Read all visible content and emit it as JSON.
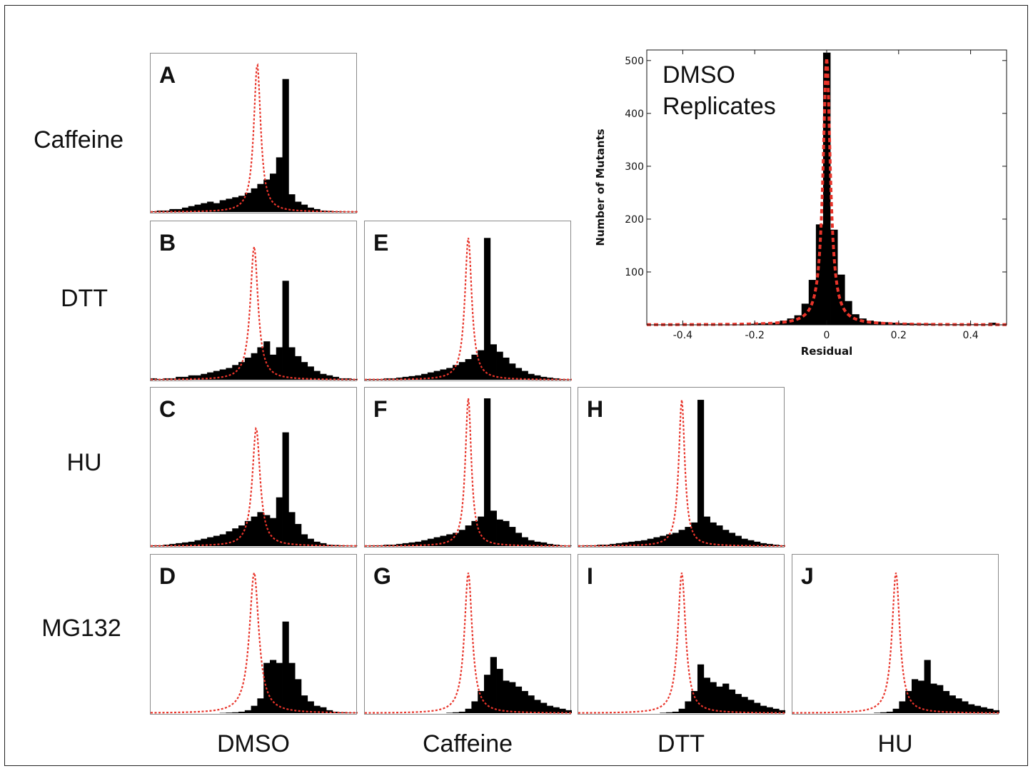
{
  "row_labels": [
    "Caffeine",
    "DTT",
    "HU",
    "MG132"
  ],
  "column_labels": [
    "DMSO",
    "Caffeine",
    "DTT",
    "HU"
  ],
  "colors": {
    "bars": "#000000",
    "fit": "#e8342a",
    "frame": "#8a8a8a"
  },
  "chart_data": [
    {
      "id": "main",
      "type": "bar",
      "title": [
        "DMSO",
        "Replicates"
      ],
      "xlabel": "Residual",
      "ylabel": "Number of Mutants",
      "xlim": [
        -0.5,
        0.5
      ],
      "ylim": [
        0,
        520
      ],
      "xticks": [
        -0.4,
        -0.2,
        0,
        0.2,
        0.4
      ],
      "xtick_labels": [
        "-0.4",
        "-0.2",
        "0",
        "0.2",
        "0.4"
      ],
      "yticks": [
        100,
        200,
        300,
        400,
        500
      ],
      "ytick_labels": [
        "100",
        "200",
        "300",
        "400",
        "500"
      ],
      "bin_width": 0.02,
      "x": [
        -0.2,
        -0.18,
        -0.16,
        -0.14,
        -0.12,
        -0.1,
        -0.08,
        -0.06,
        -0.04,
        -0.02,
        0,
        0.02,
        0.04,
        0.06,
        0.08,
        0.1,
        0.12,
        0.14,
        0.16,
        0.18,
        0.2,
        0.22,
        0.24,
        0.26,
        0.28,
        0.3,
        0.32,
        0.34,
        0.36,
        0.38,
        0.4,
        0.42,
        0.44,
        0.46
      ],
      "values": [
        2,
        3,
        3,
        4,
        8,
        12,
        18,
        40,
        85,
        190,
        515,
        180,
        95,
        45,
        20,
        12,
        8,
        6,
        5,
        4,
        3,
        3,
        2,
        2,
        2,
        1,
        1,
        1,
        1,
        1,
        1,
        1,
        1,
        4
      ],
      "fit": {
        "center": 0.0,
        "width": 0.012,
        "peak": 505
      }
    },
    {
      "id": "A",
      "type": "bar",
      "row": 0,
      "col": 0,
      "xlim": [
        -1,
        1
      ],
      "ylim": [
        0,
        1
      ],
      "values": [
        0.005,
        0.01,
        0.01,
        0.02,
        0.02,
        0.03,
        0.04,
        0.05,
        0.06,
        0.07,
        0.06,
        0.08,
        0.09,
        0.1,
        0.11,
        0.13,
        0.16,
        0.19,
        0.22,
        0.26,
        0.37,
        0.9,
        0.12,
        0.07,
        0.05,
        0.03,
        0.02,
        0.01,
        0.008,
        0.005,
        0.003,
        0.002,
        0.002
      ],
      "fit": {
        "center": 0.03,
        "width": 0.04,
        "peak": 1.0
      }
    },
    {
      "id": "B",
      "type": "bar",
      "row": 1,
      "col": 0,
      "xlim": [
        -1,
        1
      ],
      "ylim": [
        0,
        1
      ],
      "values": [
        0.01,
        0.005,
        0.01,
        0.01,
        0.02,
        0.02,
        0.03,
        0.03,
        0.04,
        0.05,
        0.06,
        0.07,
        0.08,
        0.1,
        0.12,
        0.15,
        0.18,
        0.22,
        0.26,
        0.17,
        0.22,
        0.67,
        0.22,
        0.16,
        0.12,
        0.09,
        0.06,
        0.04,
        0.03,
        0.02,
        0.01,
        0.01,
        0.005
      ],
      "fit": {
        "center": 0.0,
        "width": 0.045,
        "peak": 0.9
      }
    },
    {
      "id": "C",
      "type": "bar",
      "row": 2,
      "col": 0,
      "xlim": [
        -1,
        1
      ],
      "ylim": [
        0,
        1
      ],
      "values": [
        0.005,
        0.005,
        0.01,
        0.015,
        0.02,
        0.025,
        0.03,
        0.04,
        0.05,
        0.06,
        0.07,
        0.08,
        0.1,
        0.12,
        0.14,
        0.17,
        0.2,
        0.23,
        0.21,
        0.19,
        0.33,
        0.77,
        0.23,
        0.15,
        0.08,
        0.05,
        0.03,
        0.02,
        0.01,
        0.008,
        0.005,
        0.003,
        0.002
      ],
      "fit": {
        "center": 0.02,
        "width": 0.045,
        "peak": 0.8
      }
    },
    {
      "id": "D",
      "type": "bar",
      "row": 3,
      "col": 0,
      "xlim": [
        -1,
        1
      ],
      "ylim": [
        0,
        1
      ],
      "values": [
        0,
        0,
        0,
        0,
        0,
        0,
        0,
        0,
        0,
        0,
        0,
        0.002,
        0.004,
        0.006,
        0.01,
        0.02,
        0.05,
        0.1,
        0.34,
        0.36,
        0.34,
        0.62,
        0.34,
        0.23,
        0.12,
        0.08,
        0.05,
        0.04,
        0.02,
        0.01,
        0.006,
        0.003,
        0.002
      ],
      "fit": {
        "center": 0.0,
        "width": 0.055,
        "peak": 0.95
      }
    },
    {
      "id": "E",
      "type": "bar",
      "row": 1,
      "col": 1,
      "xlim": [
        -1,
        1
      ],
      "ylim": [
        0,
        1
      ],
      "values": [
        0.005,
        0.005,
        0.005,
        0.01,
        0.01,
        0.015,
        0.02,
        0.025,
        0.03,
        0.04,
        0.05,
        0.06,
        0.07,
        0.08,
        0.1,
        0.12,
        0.14,
        0.17,
        0.2,
        0.96,
        0.24,
        0.19,
        0.15,
        0.11,
        0.08,
        0.06,
        0.04,
        0.03,
        0.02,
        0.015,
        0.01,
        0.005,
        0.003
      ],
      "fit": {
        "center": 0.0,
        "width": 0.04,
        "peak": 0.96
      }
    },
    {
      "id": "F",
      "type": "bar",
      "row": 2,
      "col": 1,
      "xlim": [
        -1,
        1
      ],
      "ylim": [
        0,
        1
      ],
      "values": [
        0.003,
        0.005,
        0.005,
        0.01,
        0.01,
        0.015,
        0.02,
        0.025,
        0.03,
        0.04,
        0.05,
        0.06,
        0.07,
        0.08,
        0.09,
        0.11,
        0.14,
        0.17,
        0.2,
        1.0,
        0.24,
        0.18,
        0.17,
        0.13,
        0.09,
        0.06,
        0.04,
        0.03,
        0.025,
        0.015,
        0.01,
        0.005,
        0.003
      ],
      "fit": {
        "center": 0.0,
        "width": 0.035,
        "peak": 1.0
      }
    },
    {
      "id": "G",
      "type": "bar",
      "row": 3,
      "col": 1,
      "xlim": [
        -1,
        1
      ],
      "ylim": [
        0,
        1
      ],
      "values": [
        0,
        0,
        0,
        0,
        0,
        0,
        0,
        0,
        0,
        0,
        0,
        0,
        0,
        0.003,
        0.006,
        0.01,
        0.03,
        0.08,
        0.15,
        0.26,
        0.38,
        0.3,
        0.22,
        0.21,
        0.18,
        0.15,
        0.12,
        0.09,
        0.07,
        0.05,
        0.04,
        0.03,
        0.02
      ],
      "fit": {
        "center": 0.0,
        "width": 0.045,
        "peak": 0.95
      }
    },
    {
      "id": "H",
      "type": "bar",
      "row": 2,
      "col": 2,
      "xlim": [
        -1,
        1
      ],
      "ylim": [
        0,
        1
      ],
      "values": [
        0.003,
        0.005,
        0.005,
        0.01,
        0.01,
        0.015,
        0.02,
        0.025,
        0.03,
        0.035,
        0.04,
        0.05,
        0.06,
        0.07,
        0.08,
        0.09,
        0.11,
        0.13,
        0.16,
        0.99,
        0.2,
        0.16,
        0.14,
        0.11,
        0.09,
        0.07,
        0.05,
        0.04,
        0.03,
        0.02,
        0.015,
        0.01,
        0.005
      ],
      "fit": {
        "center": 0.0,
        "width": 0.035,
        "peak": 0.99
      }
    },
    {
      "id": "I",
      "type": "bar",
      "row": 3,
      "col": 2,
      "xlim": [
        -1,
        1
      ],
      "ylim": [
        0,
        1
      ],
      "values": [
        0,
        0,
        0,
        0,
        0,
        0,
        0,
        0,
        0,
        0,
        0,
        0,
        0,
        0.003,
        0.006,
        0.01,
        0.03,
        0.08,
        0.15,
        0.33,
        0.24,
        0.21,
        0.18,
        0.2,
        0.16,
        0.13,
        0.11,
        0.09,
        0.07,
        0.05,
        0.04,
        0.03,
        0.02
      ],
      "fit": {
        "center": 0.0,
        "width": 0.045,
        "peak": 0.95
      }
    },
    {
      "id": "J",
      "type": "bar",
      "row": 3,
      "col": 3,
      "xlim": [
        -1,
        1
      ],
      "ylim": [
        0,
        1
      ],
      "values": [
        0,
        0,
        0,
        0,
        0,
        0,
        0,
        0,
        0,
        0,
        0,
        0,
        0,
        0.003,
        0.006,
        0.01,
        0.03,
        0.08,
        0.15,
        0.23,
        0.22,
        0.36,
        0.2,
        0.19,
        0.15,
        0.12,
        0.1,
        0.08,
        0.06,
        0.05,
        0.04,
        0.03,
        0.02
      ],
      "fit": {
        "center": 0.0,
        "width": 0.045,
        "peak": 0.95
      }
    }
  ]
}
